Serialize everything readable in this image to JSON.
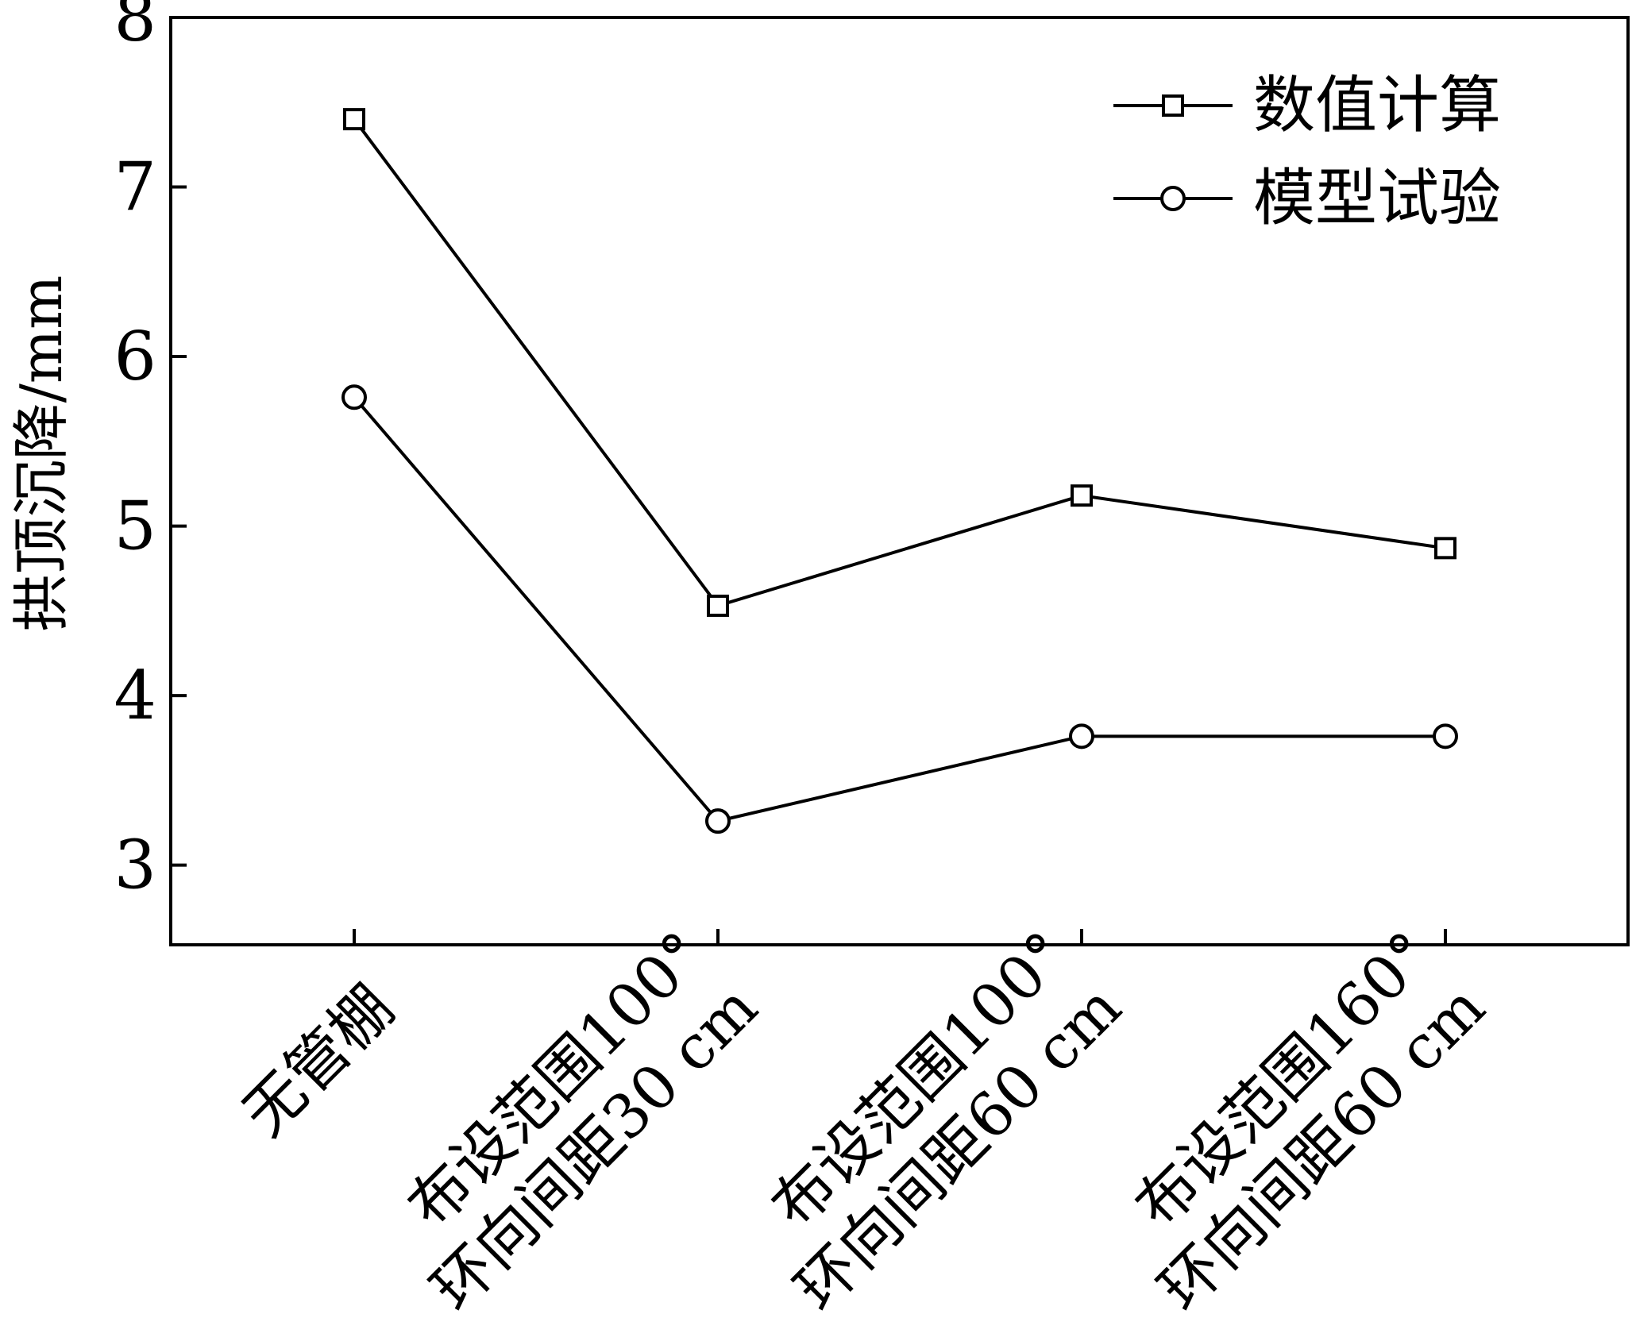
{
  "chart_data": {
    "type": "line",
    "title": "",
    "xlabel": "",
    "ylabel": "拱顶沉降/mm",
    "categories": [
      [
        "无管棚"
      ],
      [
        "布设范围100°",
        "环向间距30 cm"
      ],
      [
        "布设范围100°",
        "环向间距60 cm"
      ],
      [
        "布设范围160°",
        "环向间距60 cm"
      ]
    ],
    "ylim": [
      2.53,
      8.0
    ],
    "yticks": [
      3,
      4,
      5,
      6,
      7,
      8
    ],
    "grid": false,
    "legend_position": "top-right",
    "series": [
      {
        "name": "数值计算",
        "marker": "square",
        "values": [
          7.4,
          4.53,
          5.18,
          4.87
        ]
      },
      {
        "name": "模型试验",
        "marker": "circle",
        "values": [
          5.76,
          3.26,
          3.76,
          3.76
        ]
      }
    ],
    "colors": {
      "line": "#000000",
      "background": "#ffffff"
    }
  }
}
